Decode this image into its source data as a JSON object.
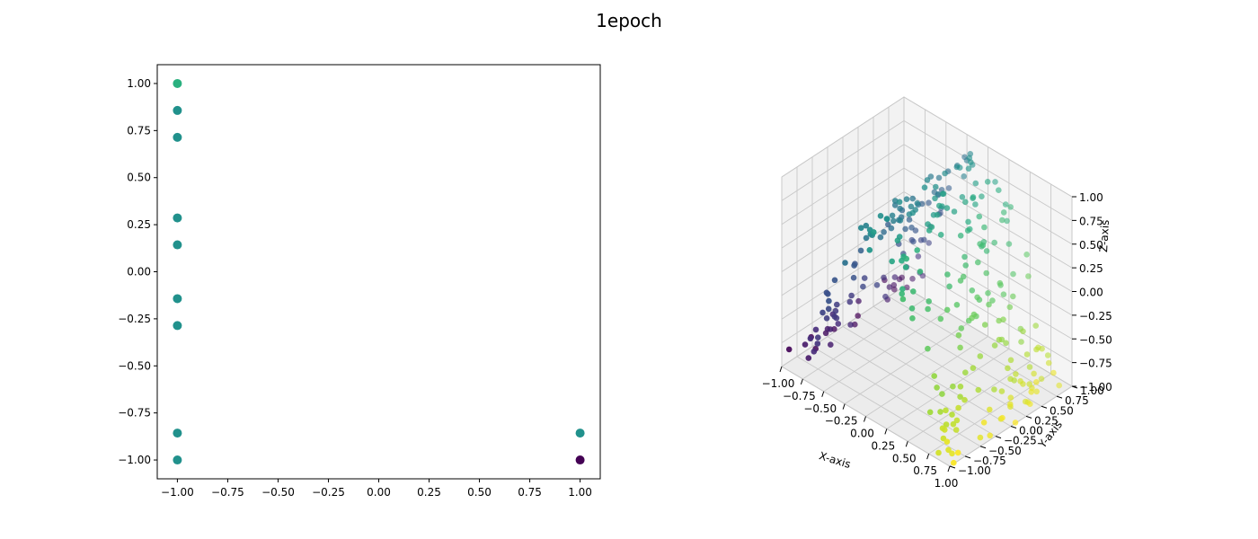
{
  "figure": {
    "title": "1epoch"
  },
  "chart_data": [
    {
      "type": "scatter",
      "title": "",
      "xlabel": "",
      "ylabel": "",
      "xlim": [
        -1.1,
        1.1
      ],
      "ylim": [
        -1.1,
        1.1
      ],
      "xticks": [
        "−1.00",
        "−0.75",
        "−0.50",
        "−0.25",
        "0.00",
        "0.25",
        "0.50",
        "0.75",
        "1.00"
      ],
      "yticks": [
        "1.00",
        "0.75",
        "0.50",
        "0.25",
        "0.00",
        "−0.25",
        "−0.50",
        "−0.75",
        "−1.00"
      ],
      "grid": false,
      "points": [
        {
          "x": -1.0,
          "y": 1.0,
          "color": "#2ab07f"
        },
        {
          "x": -1.0,
          "y": 0.857,
          "color": "#21918c"
        },
        {
          "x": -1.0,
          "y": 0.714,
          "color": "#21918c"
        },
        {
          "x": -1.0,
          "y": 0.286,
          "color": "#21918c"
        },
        {
          "x": -1.0,
          "y": 0.143,
          "color": "#21918c"
        },
        {
          "x": -1.0,
          "y": -0.143,
          "color": "#21918c"
        },
        {
          "x": -1.0,
          "y": -0.286,
          "color": "#21918c"
        },
        {
          "x": -1.0,
          "y": -0.857,
          "color": "#21918c"
        },
        {
          "x": -1.0,
          "y": -1.0,
          "color": "#21918c"
        },
        {
          "x": 1.0,
          "y": -0.857,
          "color": "#21918c"
        },
        {
          "x": 1.0,
          "y": -1.0,
          "color": "#440154"
        }
      ]
    },
    {
      "type": "scatter3d",
      "title": "",
      "xlabel": "X-axis",
      "ylabel": "Y-axis",
      "zlabel": "Z-axis",
      "xlim": [
        -1,
        1
      ],
      "ylim": [
        -1,
        1
      ],
      "zlim": [
        -1,
        1
      ],
      "ticks": [
        "−1.00",
        "−0.75",
        "−0.50",
        "−0.25",
        "0.00",
        "0.25",
        "0.50",
        "0.75",
        "1.00"
      ],
      "grid": true,
      "colormap": "viridis"
    }
  ]
}
